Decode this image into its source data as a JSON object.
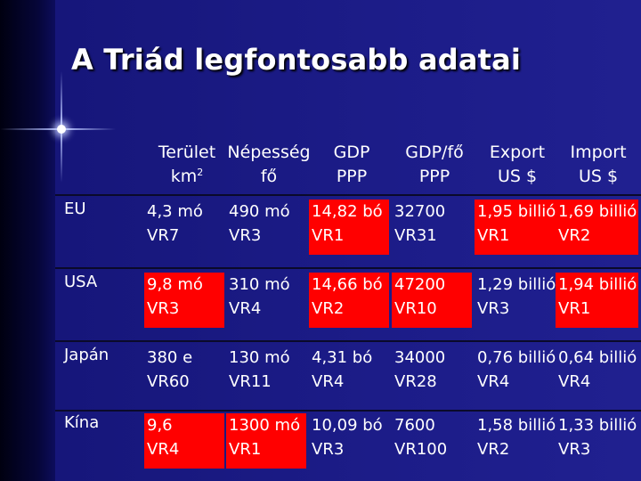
{
  "title": "A Triád legfontosabb adatai",
  "colors": {
    "background": "#1a1a80",
    "highlight": "#ff0000",
    "text": "#ffffff"
  },
  "header": [
    {
      "line1": "Terület",
      "line2": "km",
      "sup": "2"
    },
    {
      "line1": "Népesség",
      "line2": "fő",
      "sup": ""
    },
    {
      "line1": "GDP",
      "line2": "PPP",
      "sup": ""
    },
    {
      "line1": "GDP/fő",
      "line2": "PPP",
      "sup": ""
    },
    {
      "line1": "Export",
      "line2": "US $",
      "sup": ""
    },
    {
      "line1": "Import",
      "line2": "US $",
      "sup": ""
    }
  ],
  "rows": [
    {
      "label": "EU",
      "cells": [
        {
          "value": "4,3 mó",
          "rank": "VR7",
          "highlight": false
        },
        {
          "value": "490 mó",
          "rank": "VR3",
          "highlight": false
        },
        {
          "value": "14,82 bó",
          "rank": "VR1",
          "highlight": true
        },
        {
          "value": "32700",
          "rank": "VR31",
          "highlight": false
        },
        {
          "value": "1,95 billió",
          "rank": "VR1",
          "highlight": true
        },
        {
          "value": "1,69 billió",
          "rank": "VR2",
          "highlight": true
        }
      ]
    },
    {
      "label": "USA",
      "cells": [
        {
          "value": "9,8 mó",
          "rank": "VR3",
          "highlight": true
        },
        {
          "value": "310 mó",
          "rank": "VR4",
          "highlight": false
        },
        {
          "value": "14,66 bó",
          "rank": "VR2",
          "highlight": true
        },
        {
          "value": "47200",
          "rank": "VR10",
          "highlight": true
        },
        {
          "value": "1,29 billió",
          "rank": "VR3",
          "highlight": false
        },
        {
          "value": "1,94 billió",
          "rank": "VR1",
          "highlight": true
        }
      ]
    },
    {
      "label": "Japán",
      "cells": [
        {
          "value": "380 e",
          "rank": "VR60",
          "highlight": false
        },
        {
          "value": "130 mó",
          "rank": "VR11",
          "highlight": false
        },
        {
          "value": "4,31 bó",
          "rank": "VR4",
          "highlight": false
        },
        {
          "value": "34000",
          "rank": "VR28",
          "highlight": false
        },
        {
          "value": "0,76 billió",
          "rank": "VR4",
          "highlight": false
        },
        {
          "value": "0,64 billió",
          "rank": "VR4",
          "highlight": false
        }
      ]
    },
    {
      "label": "Kína",
      "cells": [
        {
          "value": "9,6",
          "rank": "VR4",
          "highlight": true
        },
        {
          "value": "1300 mó",
          "rank": "VR1",
          "highlight": true
        },
        {
          "value": "10,09 bó",
          "rank": "VR3",
          "highlight": false
        },
        {
          "value": "7600",
          "rank": "VR100",
          "highlight": false
        },
        {
          "value": "1,58 billió",
          "rank": "VR2",
          "highlight": false
        },
        {
          "value": "1,33 billió",
          "rank": "VR3",
          "highlight": false
        }
      ]
    }
  ]
}
